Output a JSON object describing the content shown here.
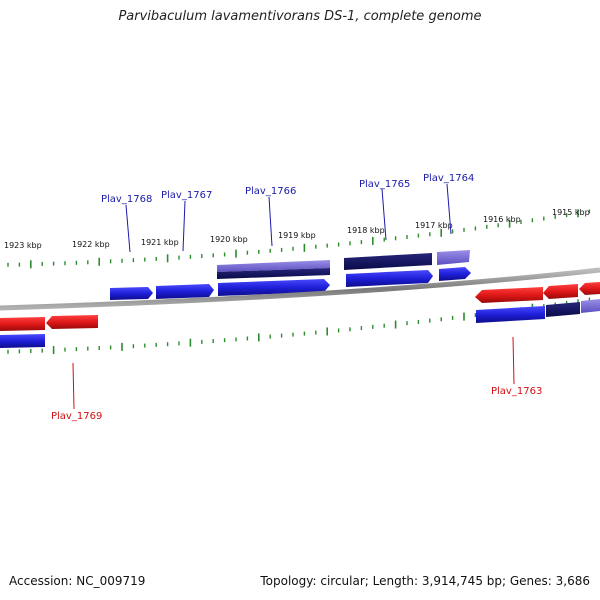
{
  "title": "Parvibaculum lavamentivorans DS-1, complete genome",
  "footer": {
    "accession": "Accession: NC_009719",
    "summary": "Topology: circular; Length: 3,914,745 bp; Genes: 3,686"
  },
  "colors": {
    "forward_gene": "#1f1fd9",
    "forward_gene_dark": "#10107a",
    "forward_gene_light": "#7b6fd8",
    "reverse_gene": "#e01818",
    "tick": "#2e8b2e",
    "backbone": "#8a8a8a",
    "label_forward": "#1a1aaa",
    "label_reverse": "#d01010"
  },
  "scale_labels": [
    "1923 kbp",
    "1922 kbp",
    "1921 kbp",
    "1920 kbp",
    "1919 kbp",
    "1918 kbp",
    "1917 kbp",
    "1916 kbp",
    "1915 kbp"
  ],
  "gene_labels": [
    "Plav_1768",
    "Plav_1767",
    "Plav_1766",
    "Plav_1765",
    "Plav_1764",
    "Plav_1763",
    "Plav_1769"
  ]
}
